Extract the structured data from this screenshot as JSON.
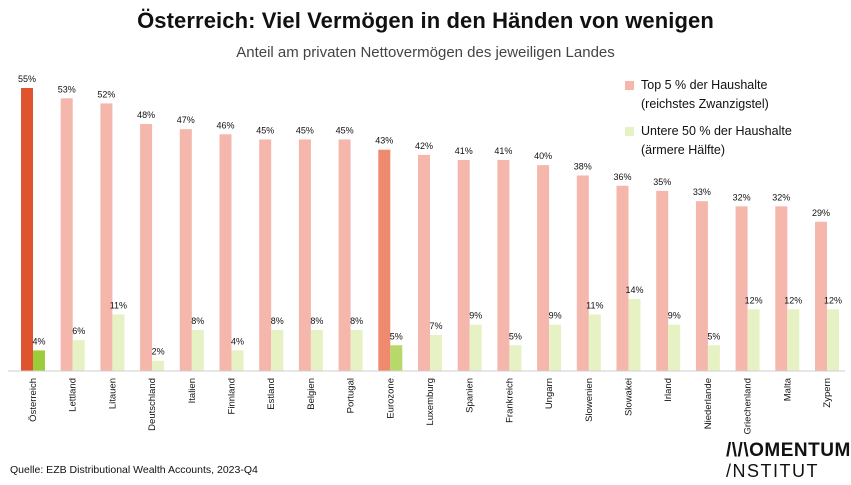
{
  "title": "Österreich: Viel Vermögen in den Händen von wenigen",
  "subtitle": "Anteil am privaten Nettovermögen des jeweiligen Landes",
  "legend": {
    "top": {
      "line1": "Top 5 % der Haushalte",
      "line2": "(reichstes Zwanzigstel)"
    },
    "bottom": {
      "line1": "Untere 50 % der Haushalte",
      "line2": "(ärmere Hälfte)"
    }
  },
  "source": "Quelle: EZB Distributional Wealth Accounts, 2023-Q4",
  "logo": {
    "line1": "/\\/\\OMENTUM",
    "line2": "/NSTITUT"
  },
  "colors": {
    "top_default": "#f5b6ac",
    "top_austria": "#e0532f",
    "top_eurozone": "#f08a6f",
    "bottom_default": "#e6f2c4",
    "bottom_austria": "#9ccc3c",
    "bottom_eurozone": "#b7d96a"
  },
  "chart_data": {
    "type": "bar",
    "categories": [
      "Österreich",
      "Lettland",
      "Litauen",
      "Deutschland",
      "Italien",
      "Finnland",
      "Estland",
      "Belgien",
      "Portugal",
      "Eurozone",
      "Luxemburg",
      "Spanien",
      "Frankreich",
      "Ungarn",
      "Slowenien",
      "Slowakei",
      "Irland",
      "Niederlande",
      "Griechenland",
      "Malta",
      "Zypern"
    ],
    "series": [
      {
        "name": "Top 5 % der Haushalte (reichstes Zwanzigstel)",
        "values": [
          55,
          53,
          52,
          48,
          47,
          46,
          45,
          45,
          45,
          43,
          42,
          41,
          41,
          40,
          38,
          36,
          35,
          33,
          32,
          32,
          29
        ]
      },
      {
        "name": "Untere 50 % der Haushalte (ärmere Hälfte)",
        "values": [
          4,
          6,
          11,
          2,
          8,
          4,
          8,
          8,
          8,
          5,
          7,
          9,
          5,
          9,
          11,
          14,
          9,
          5,
          12,
          12,
          12
        ]
      }
    ],
    "value_labels": {
      "top": [
        "55%",
        "53%",
        "52%",
        "48%",
        "47%",
        "46%",
        "45%",
        "45%",
        "45%",
        "43%",
        "42%",
        "41%",
        "41%",
        "40%",
        "38%",
        "36%",
        "35%",
        "33%",
        "32%",
        "32%",
        "29%"
      ],
      "bottom": [
        "4%",
        "6%",
        "11%",
        "2%",
        "8%",
        "4%",
        "8%",
        "8%",
        "8%",
        "5%",
        "7%",
        "9%",
        "5%",
        "9%",
        "11%",
        "14%",
        "9%",
        "5%",
        "12%",
        "12%",
        "12%"
      ]
    },
    "highlight": [
      "Österreich",
      "Eurozone"
    ],
    "ylim": [
      0,
      55
    ],
    "grid": false,
    "legend_position": "top-right"
  }
}
